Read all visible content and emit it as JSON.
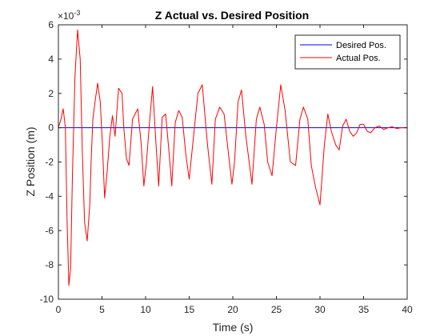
{
  "chart_data": {
    "type": "line",
    "title": "Z Actual vs. Desired Position",
    "xlabel": "Time (s)",
    "ylabel": "Z Position (m)",
    "y_exponent_label": "×10",
    "y_exponent_power": "-3",
    "xlim": [
      0,
      40
    ],
    "ylim": [
      -10,
      6
    ],
    "xticks": [
      0,
      5,
      10,
      15,
      20,
      25,
      30,
      35,
      40
    ],
    "yticks": [
      -10,
      -8,
      -6,
      -4,
      -2,
      0,
      2,
      4,
      6
    ],
    "grid": false,
    "legend_position": "top-right",
    "series": [
      {
        "name": "Desired Pos.",
        "color": "#0000ff",
        "x": [
          0,
          40
        ],
        "y": [
          0,
          0
        ]
      },
      {
        "name": "Actual Pos.",
        "color": "#ff0000",
        "x": [
          0,
          0.3,
          0.55,
          0.8,
          1.0,
          1.2,
          1.4,
          1.6,
          1.9,
          2.2,
          2.5,
          2.75,
          3.0,
          3.3,
          3.6,
          3.75,
          3.95,
          4.2,
          4.5,
          4.8,
          5.05,
          5.3,
          5.6,
          5.9,
          6.2,
          6.5,
          6.9,
          7.3,
          7.5,
          7.8,
          8.1,
          8.5,
          8.8,
          9.1,
          9.5,
          9.8,
          10.1,
          10.4,
          10.8,
          11.2,
          11.5,
          11.9,
          12.3,
          12.7,
          13.0,
          13.4,
          13.8,
          14.2,
          14.6,
          15.0,
          15.5,
          16.0,
          16.5,
          17.1,
          17.6,
          18.0,
          18.5,
          19.0,
          19.5,
          19.9,
          20.2,
          20.6,
          21.0,
          21.5,
          22.2,
          22.7,
          23.1,
          23.6,
          24.0,
          24.5,
          25.0,
          25.5,
          26.0,
          26.6,
          27.2,
          27.7,
          28.1,
          28.6,
          29.0,
          29.5,
          30.0,
          30.5,
          30.9,
          31.3,
          31.8,
          32.2,
          32.6,
          33.0,
          33.4,
          33.8,
          34.2,
          34.6,
          35.0,
          35.4,
          35.8,
          36.3,
          36.8,
          37.3,
          37.8,
          38.3,
          38.8,
          39.3,
          39.7,
          40.0
        ],
        "y": [
          0,
          0.5,
          1.1,
          0.0,
          -5.5,
          -9.2,
          -8.2,
          -3.0,
          3.0,
          5.7,
          4.0,
          -1.5,
          -5.5,
          -6.6,
          -4.5,
          -2.0,
          0.5,
          1.5,
          2.6,
          1.5,
          -1.0,
          -4.1,
          -2.5,
          -0.5,
          0.7,
          -0.5,
          2.3,
          2.0,
          0.0,
          -1.8,
          -2.2,
          0.5,
          0.8,
          1.1,
          -1.0,
          -3.4,
          -2.0,
          0.0,
          2.4,
          -1.0,
          -3.4,
          0.6,
          0.8,
          -1.5,
          -3.4,
          0.3,
          1.0,
          0.6,
          -1.5,
          -3.0,
          -0.5,
          2.0,
          2.5,
          -1.0,
          -3.3,
          0.5,
          1.2,
          0.8,
          -1.5,
          -3.3,
          -2.0,
          1.5,
          2.2,
          -0.5,
          -3.3,
          0.5,
          1.2,
          0.2,
          -2.0,
          -2.8,
          0.0,
          2.5,
          1.0,
          -2.0,
          -2.2,
          0.5,
          1.2,
          0.5,
          -2.2,
          -3.5,
          -4.5,
          -1.0,
          0.8,
          -0.2,
          -1.0,
          -1.3,
          0.1,
          0.5,
          -0.2,
          -0.5,
          -0.3,
          0.2,
          0.2,
          -0.2,
          -0.3,
          0.0,
          0.1,
          -0.1,
          0.0,
          0.05,
          -0.05,
          0.0,
          0.0,
          0.0
        ]
      }
    ]
  }
}
